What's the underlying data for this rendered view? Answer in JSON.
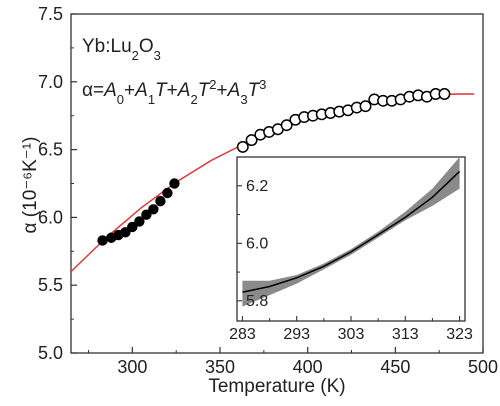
{
  "chart_data": [
    {
      "type": "scatter",
      "xlabel": "Temperature (K)",
      "ylabel": "α (10⁻⁶K⁻¹)",
      "xlim": [
        265,
        500
      ],
      "ylim": [
        5.0,
        7.5
      ],
      "xticks": [
        300,
        350,
        400,
        450,
        500
      ],
      "yticks": [
        5.0,
        5.5,
        6.0,
        6.5,
        7.0,
        7.5
      ],
      "xtick_labels": [
        "300",
        "350",
        "400",
        "450",
        "500"
      ],
      "ytick_labels": [
        "5.0",
        "5.5",
        "6.0",
        "6.5",
        "7.0",
        "7.5"
      ],
      "grid": false,
      "annotations": {
        "material_base": "Yb:Lu",
        "material_sub": "2",
        "material_rest": "O",
        "material_sub2": "3",
        "equation": {
          "lhs": "α=",
          "A0": "A",
          "A0_sub": "0",
          "plus": "+",
          "A1": "A",
          "A1_sub": "1",
          "T": "T",
          "A2": "A",
          "A2_sub": "2",
          "A3": "A",
          "A3_sub": "3",
          "pow2": "2",
          "pow3": "3"
        }
      },
      "series": [
        {
          "marker": "filled-circle",
          "color": "#000000",
          "x": [
            283,
            288,
            292,
            296,
            300,
            304,
            308,
            312,
            316,
            320,
            324
          ],
          "y": [
            5.83,
            5.85,
            5.87,
            5.89,
            5.93,
            5.97,
            6.02,
            6.06,
            6.12,
            6.18,
            6.25
          ]
        },
        {
          "marker": "open-circle",
          "color": "#000000",
          "x": [
            363,
            368,
            373,
            378,
            383,
            388,
            393,
            398,
            403,
            408,
            413,
            418,
            423,
            428,
            433,
            438,
            443,
            448,
            453,
            458,
            463,
            468,
            473,
            478
          ],
          "y": [
            6.52,
            6.57,
            6.61,
            6.63,
            6.65,
            6.68,
            6.72,
            6.74,
            6.75,
            6.76,
            6.77,
            6.78,
            6.79,
            6.81,
            6.82,
            6.87,
            6.86,
            6.86,
            6.87,
            6.89,
            6.9,
            6.89,
            6.91,
            6.91
          ]
        },
        {
          "marker": "line",
          "color": "#e03030",
          "x": [
            265,
            285,
            305,
            325,
            345,
            365,
            385,
            405,
            425,
            445,
            465,
            485,
            495
          ],
          "y": [
            5.6,
            5.85,
            6.07,
            6.26,
            6.42,
            6.55,
            6.66,
            6.75,
            6.82,
            6.87,
            6.9,
            6.91,
            6.91
          ]
        }
      ]
    },
    {
      "type": "line",
      "xlim": [
        282,
        324
      ],
      "ylim": [
        5.73,
        6.3
      ],
      "xticks": [
        283,
        293,
        303,
        313,
        323
      ],
      "yticks": [
        5.8,
        6.0,
        6.2
      ],
      "xtick_labels": [
        "283",
        "293",
        "303",
        "313",
        "323"
      ],
      "ytick_labels": [
        "5.8",
        "6.0",
        "6.2"
      ],
      "series": [
        {
          "marker": "line",
          "color": "#000000",
          "band_color": "#8a8a8a",
          "x": [
            283,
            288,
            293,
            298,
            303,
            308,
            313,
            318,
            323
          ],
          "y": [
            5.83,
            5.85,
            5.88,
            5.92,
            5.97,
            6.03,
            6.09,
            6.16,
            6.25
          ],
          "lower": [
            5.78,
            5.82,
            5.86,
            5.91,
            5.96,
            6.02,
            6.08,
            6.13,
            6.19
          ],
          "upper": [
            5.87,
            5.87,
            5.89,
            5.93,
            5.98,
            6.04,
            6.11,
            6.19,
            6.3
          ]
        }
      ]
    }
  ]
}
